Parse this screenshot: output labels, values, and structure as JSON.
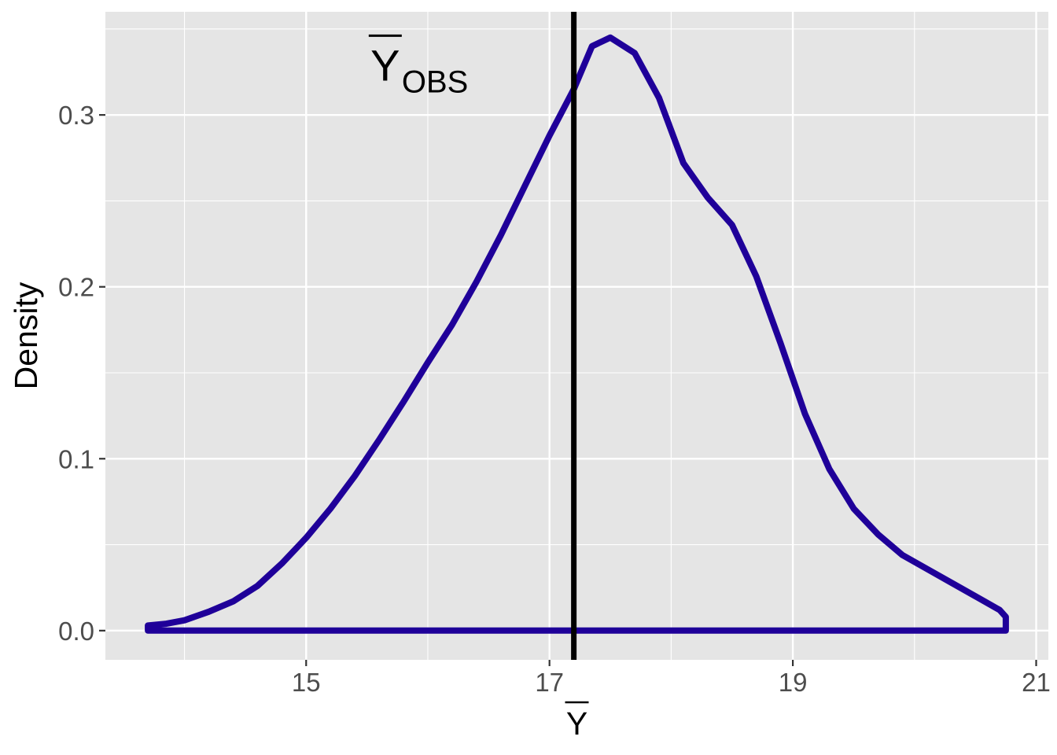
{
  "chart_data": {
    "type": "line",
    "title": "",
    "xlabel": "Y",
    "ylabel": "Density",
    "xlim": [
      13.35,
      21.1
    ],
    "ylim": [
      -0.017,
      0.36
    ],
    "x_ticks": [
      15,
      17,
      19,
      21
    ],
    "x_tick_labels": [
      "15",
      "17",
      "19",
      "21"
    ],
    "x_minor_ticks": [
      14,
      16,
      18,
      20
    ],
    "y_ticks": [
      0.0,
      0.1,
      0.2,
      0.3
    ],
    "y_tick_labels": [
      "0.0",
      "0.1",
      "0.2",
      "0.3"
    ],
    "y_minor_ticks": [
      0.05,
      0.15,
      0.25,
      0.35
    ],
    "grid": true,
    "background": "#e5e5e5",
    "line_color": "#1f0099",
    "vline": {
      "x": 17.2,
      "color": "#000000"
    },
    "annotation": {
      "main": "Y",
      "sub": "OBS",
      "x": 15.65,
      "y": 0.32
    },
    "series": [
      {
        "x": [
          13.7,
          13.85,
          14.0,
          14.2,
          14.4,
          14.6,
          14.8,
          15.0,
          15.2,
          15.4,
          15.6,
          15.8,
          16.0,
          16.2,
          16.4,
          16.6,
          16.8,
          17.0,
          17.2,
          17.35,
          17.5,
          17.7,
          17.9,
          18.1,
          18.3,
          18.5,
          18.7,
          18.9,
          19.1,
          19.3,
          19.5,
          19.7,
          19.9,
          20.1,
          20.3,
          20.5,
          20.7,
          20.75
        ],
        "values": [
          0.003,
          0.004,
          0.006,
          0.011,
          0.017,
          0.026,
          0.039,
          0.054,
          0.071,
          0.09,
          0.111,
          0.133,
          0.156,
          0.178,
          0.203,
          0.23,
          0.259,
          0.288,
          0.315,
          0.34,
          0.345,
          0.336,
          0.31,
          0.272,
          0.252,
          0.236,
          0.206,
          0.167,
          0.126,
          0.094,
          0.071,
          0.056,
          0.044,
          0.036,
          0.028,
          0.02,
          0.012,
          0.008
        ]
      }
    ]
  }
}
